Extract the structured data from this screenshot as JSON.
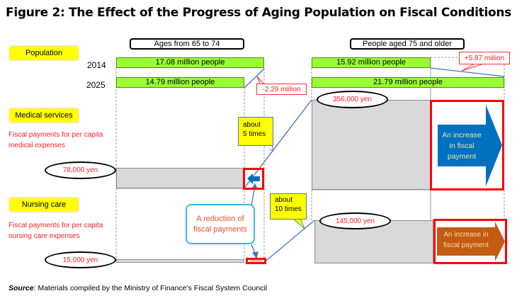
{
  "title": "Figure 2: The Effect of the Progress of Aging Population on Fiscal Conditions",
  "groups": {
    "left": "Ages from 65 to 74",
    "right": "People aged 75 and older"
  },
  "labels": {
    "population": "Population",
    "medical": "Medical services",
    "nursing": "Nursing care"
  },
  "years": [
    "2014",
    "2025"
  ],
  "population": {
    "left_2014": "17.08 million people",
    "left_2025": "14.79 million people",
    "right_2014": "15.92 million people",
    "right_2025": "21.79 million people",
    "left_change": "-2.29 miilion",
    "right_change": "+5.87 miilion"
  },
  "medical": {
    "desc_line1": "Fiscal payments for per capita",
    "desc_line2": "medical expenses",
    "left_value": "78,000 yen",
    "right_value": "356,000 yen",
    "ratio_line1": "about",
    "ratio_line2": "5 times",
    "increase": "An increase in fiscal payment"
  },
  "nursing": {
    "desc_line1": "Fiscal payments for per capita",
    "desc_line2": "nursing care expenses",
    "left_value": "15,000 yen",
    "right_value": "145,000 yen",
    "ratio_line1": "about",
    "ratio_line2": "10 times",
    "increase": "An increase in fiscal payment"
  },
  "reduction": "A reduction of fiscal payments",
  "source": {
    "label": "Source",
    "text": ": Materials compiled by the Ministry of Finance’s Fiscal System Council"
  },
  "colors": {
    "green": "#99ff33",
    "red": "#ff0000",
    "blue": "#0070c0",
    "brown": "#c55a11",
    "yellow": "#ffff00"
  }
}
